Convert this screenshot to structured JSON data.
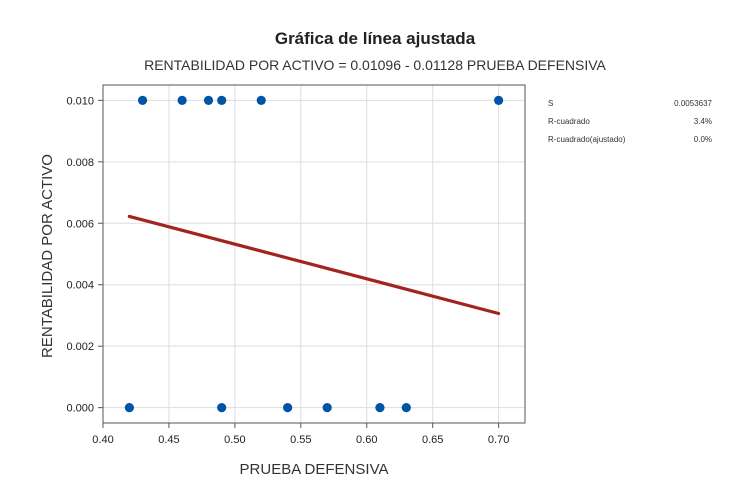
{
  "chart_data": {
    "type": "scatter",
    "title": "Gráfica de línea ajustada",
    "subtitle": "RENTABILIDAD POR ACTIVO = 0.01096 - 0.01128 PRUEBA DEFENSIVA",
    "xlabel": "PRUEBA DEFENSIVA",
    "ylabel": "RENTABILIDAD POR ACTIVO",
    "xlim": [
      0.4,
      0.72
    ],
    "ylim": [
      -0.0005,
      0.0105
    ],
    "x_ticks": [
      0.4,
      0.45,
      0.5,
      0.55,
      0.6,
      0.65,
      0.7
    ],
    "x_tick_labels": [
      "0.40",
      "0.45",
      "0.50",
      "0.55",
      "0.60",
      "0.65",
      "0.70"
    ],
    "y_ticks": [
      0.0,
      0.002,
      0.004,
      0.006,
      0.008,
      0.01
    ],
    "y_tick_labels": [
      "0.000",
      "0.002",
      "0.004",
      "0.006",
      "0.008",
      "0.010"
    ],
    "grid": true,
    "points": [
      {
        "x": 0.43,
        "y": 0.01
      },
      {
        "x": 0.46,
        "y": 0.01
      },
      {
        "x": 0.48,
        "y": 0.01
      },
      {
        "x": 0.49,
        "y": 0.01
      },
      {
        "x": 0.52,
        "y": 0.01
      },
      {
        "x": 0.7,
        "y": 0.01
      },
      {
        "x": 0.42,
        "y": 0.0
      },
      {
        "x": 0.49,
        "y": 0.0
      },
      {
        "x": 0.54,
        "y": 0.0
      },
      {
        "x": 0.57,
        "y": 0.0
      },
      {
        "x": 0.61,
        "y": 0.0
      },
      {
        "x": 0.63,
        "y": 0.0
      }
    ],
    "fit_line": {
      "intercept": 0.01096,
      "slope": -0.01128,
      "x_range": [
        0.42,
        0.7
      ]
    },
    "stats": [
      {
        "label": "S",
        "value": "0.0053637"
      },
      {
        "label": "R-cuadrado",
        "value": "3.4%"
      },
      {
        "label": "R-cuadrado(ajustado)",
        "value": "0.0%"
      }
    ],
    "colors": {
      "points": "#0054a6",
      "fit_line": "#a3231f",
      "grid": "#dddddd",
      "plot_border": "#555555"
    }
  }
}
